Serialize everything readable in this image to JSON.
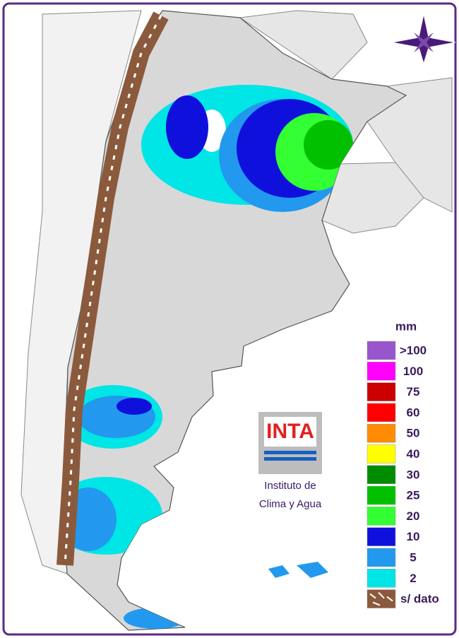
{
  "legend": {
    "title": "mm",
    "items": [
      {
        "label": ">100",
        "color": "#9955cc"
      },
      {
        "label": "100",
        "color": "#ff00ff"
      },
      {
        "label": "75",
        "color": "#cc0000"
      },
      {
        "label": "60",
        "color": "#ff0000"
      },
      {
        "label": "50",
        "color": "#ff8c00"
      },
      {
        "label": "40",
        "color": "#ffff00"
      },
      {
        "label": "30",
        "color": "#008c00"
      },
      {
        "label": "25",
        "color": "#00c000"
      },
      {
        "label": "20",
        "color": "#33ff33"
      },
      {
        "label": "10",
        "color": "#1010dd"
      },
      {
        "label": "5",
        "color": "#2299ee"
      },
      {
        "label": "2",
        "color": "#00e5e5"
      },
      {
        "label": "s/ dato",
        "color": "#8b5a3c"
      }
    ]
  },
  "logo": {
    "name": "INTA",
    "lines": [
      "Instituto de",
      "Clima y Agua"
    ]
  }
}
